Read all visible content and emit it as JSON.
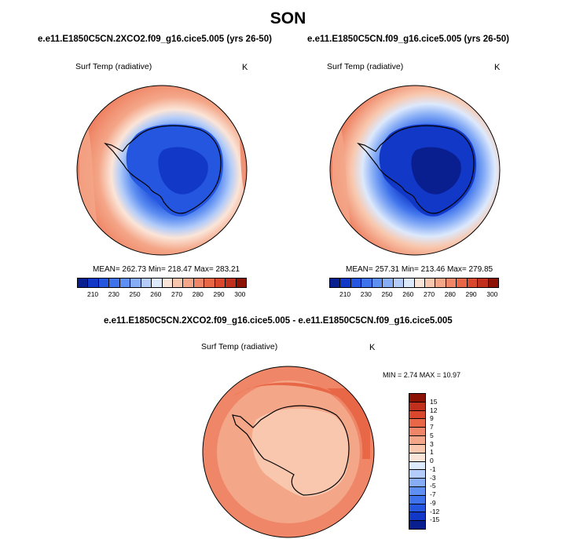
{
  "season": "SON",
  "panel_left": {
    "title": "e.e11.E1850C5CN.2XCO2.f09_g16.cice5.005 (yrs 26-50)",
    "variable": "Surf Temp (radiative)",
    "unit": "K",
    "stats": "MEAN= 262.73  Min= 218.47  Max= 283.21"
  },
  "panel_right": {
    "title": "e.e11.E1850C5CN.f09_g16.cice5.005 (yrs 26-50)",
    "variable": "Surf Temp (radiative)",
    "unit": "K",
    "stats": "MEAN= 257.31  Min= 213.46  Max= 279.85"
  },
  "panel_diff": {
    "title": "e.e11.E1850C5CN.2XCO2.f09_g16.cice5.005 - e.e11.E1850C5CN.f09_g16.cice5.005",
    "variable": "Surf Temp (radiative)",
    "unit": "K",
    "stats": "MIN =   2.74 MAX =  10.97"
  },
  "abs_colorbar": {
    "labels": [
      "210",
      "230",
      "250",
      "260",
      "270",
      "280",
      "290",
      "300"
    ],
    "colors": [
      "#0a1f8f",
      "#1238c8",
      "#2456e0",
      "#3f73ec",
      "#5e8ff2",
      "#87adf6",
      "#b3ccf9",
      "#dde9fc",
      "#fbe5d8",
      "#f8c7ad",
      "#f4a688",
      "#ef8667",
      "#e86747",
      "#d9482d",
      "#c0301c",
      "#8c1206"
    ]
  },
  "diff_colorbar": {
    "labels": [
      "15",
      "12",
      "9",
      "7",
      "5",
      "3",
      "1",
      "0",
      "-1",
      "-3",
      "-5",
      "-7",
      "-9",
      "-12",
      "-15"
    ],
    "colors": [
      "#8c1206",
      "#c0301c",
      "#d9482d",
      "#e86747",
      "#ef8667",
      "#f4a688",
      "#f8c7ad",
      "#fbe5d8",
      "#dde9fc",
      "#b3ccf9",
      "#87adf6",
      "#5e8ff2",
      "#3f73ec",
      "#2456e0",
      "#1238c8",
      "#0a1f8f"
    ]
  }
}
